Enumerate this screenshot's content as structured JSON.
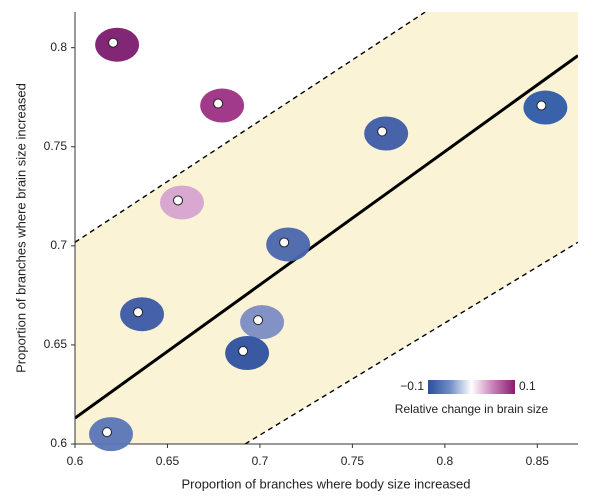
{
  "chart_data": {
    "type": "scatter",
    "xlabel": "Proportion of branches where body size increased",
    "ylabel": "Proportion of branches where brain size increased",
    "xlim": [
      0.6,
      0.872
    ],
    "ylim": [
      0.6,
      0.818
    ],
    "xticks": [
      0.6,
      0.65,
      0.7,
      0.75,
      0.8,
      0.85
    ],
    "yticks": [
      0.6,
      0.65,
      0.7,
      0.75,
      0.8
    ],
    "x": [
      0.6206,
      0.6774,
      0.7661,
      0.8522,
      0.6557,
      0.7131,
      0.6341,
      0.699,
      0.6909,
      0.6173
    ],
    "values": [
      0.8025,
      0.7718,
      0.7577,
      0.7708,
      0.7229,
      0.7017,
      0.6665,
      0.6625,
      0.6469,
      0.606
    ],
    "colors": [
      "#7b1b6f",
      "#9c2f82",
      "#3d5ba8",
      "#2f5aa8",
      "#d6a3d0",
      "#4a66ad",
      "#3b5aa5",
      "#7b8cc4",
      "#2f50a0",
      "#5a75b8"
    ],
    "band_color": "#fbf3d6",
    "lines": [
      {
        "style": "solid",
        "x": [
          0.6,
          0.872
        ],
        "values": [
          0.6131,
          0.796
        ]
      },
      {
        "style": "dashed",
        "x": [
          0.6,
          0.7894
        ],
        "values": [
          0.7018,
          0.818
        ]
      },
      {
        "style": "dashed",
        "x": [
          0.692,
          0.872
        ],
        "values": [
          0.6,
          0.7018
        ]
      }
    ],
    "colorbar": {
      "label": "Relative change in brain size",
      "ticks": [
        {
          "value": -0.1,
          "label": "−0.1"
        },
        0.1
      ],
      "colors": [
        "#2a4f9e",
        "#6f8cc6",
        "#ffffff",
        "#c77fb8",
        "#8b1a6e"
      ]
    }
  }
}
